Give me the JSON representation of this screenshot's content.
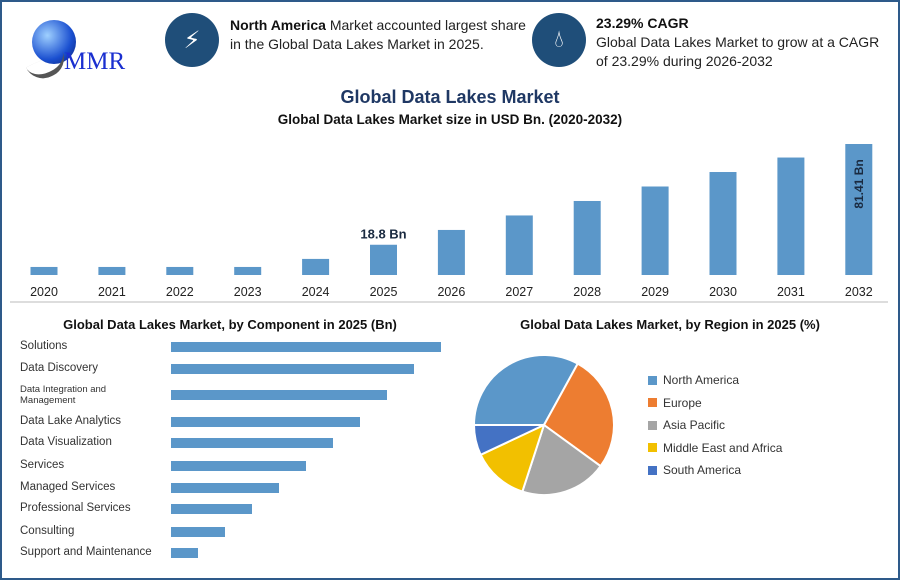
{
  "header": {
    "logo_text": "MMR",
    "info1": {
      "icon": "lightning-icon",
      "bold": "North America",
      "text": " Market accounted largest share in the Global Data Lakes Market in 2025."
    },
    "info2": {
      "icon": "growth-drop-icon",
      "bold": "23.29% CAGR",
      "text": "Global Data Lakes Market to grow at a CAGR of 23.29% during 2026-2032"
    }
  },
  "main_title": "Global Data Lakes Market",
  "colors": {
    "bar": "#5b97c9",
    "title": "#1f3864",
    "frame": "#2e5a8a"
  },
  "chart_data": [
    {
      "type": "bar",
      "title": "Global Data Lakes Market size in USD Bn. (2020-2032)",
      "categories": [
        "2020",
        "2021",
        "2022",
        "2023",
        "2024",
        "2025",
        "2026",
        "2027",
        "2028",
        "2029",
        "2030",
        "2031",
        "2032"
      ],
      "values": [
        5,
        5,
        5,
        5,
        10,
        18.8,
        28,
        37,
        46,
        55,
        64,
        73,
        81.41
      ],
      "data_labels": {
        "2025": "18.8 Bn",
        "2032": "81.41 Bn"
      },
      "grid": false
    },
    {
      "type": "bar",
      "orientation": "horizontal",
      "title": "Global Data Lakes Market, by Component in 2025 (Bn)",
      "categories": [
        "Solutions",
        "Data Discovery",
        "Data Integration and Management",
        "Data Lake Analytics",
        "Data Visualization",
        "Services",
        "Managed Services",
        "Professional Services",
        "Consulting",
        "Support and Maintenance"
      ],
      "values": [
        10,
        9,
        8,
        7,
        6,
        5,
        4,
        3,
        2,
        1
      ]
    },
    {
      "type": "pie",
      "title": "Global Data Lakes Market, by Region in 2025 (%)",
      "legend_position": "right",
      "slices": [
        {
          "label": "North America",
          "value": 33,
          "color": "#5b97c9"
        },
        {
          "label": "Europe",
          "value": 27,
          "color": "#ed7d31"
        },
        {
          "label": "Asia Pacific",
          "value": 20,
          "color": "#a5a5a5"
        },
        {
          "label": "Middle East and Africa",
          "value": 13,
          "color": "#f2c000"
        },
        {
          "label": "South America",
          "value": 7,
          "color": "#4472c4"
        }
      ]
    }
  ]
}
